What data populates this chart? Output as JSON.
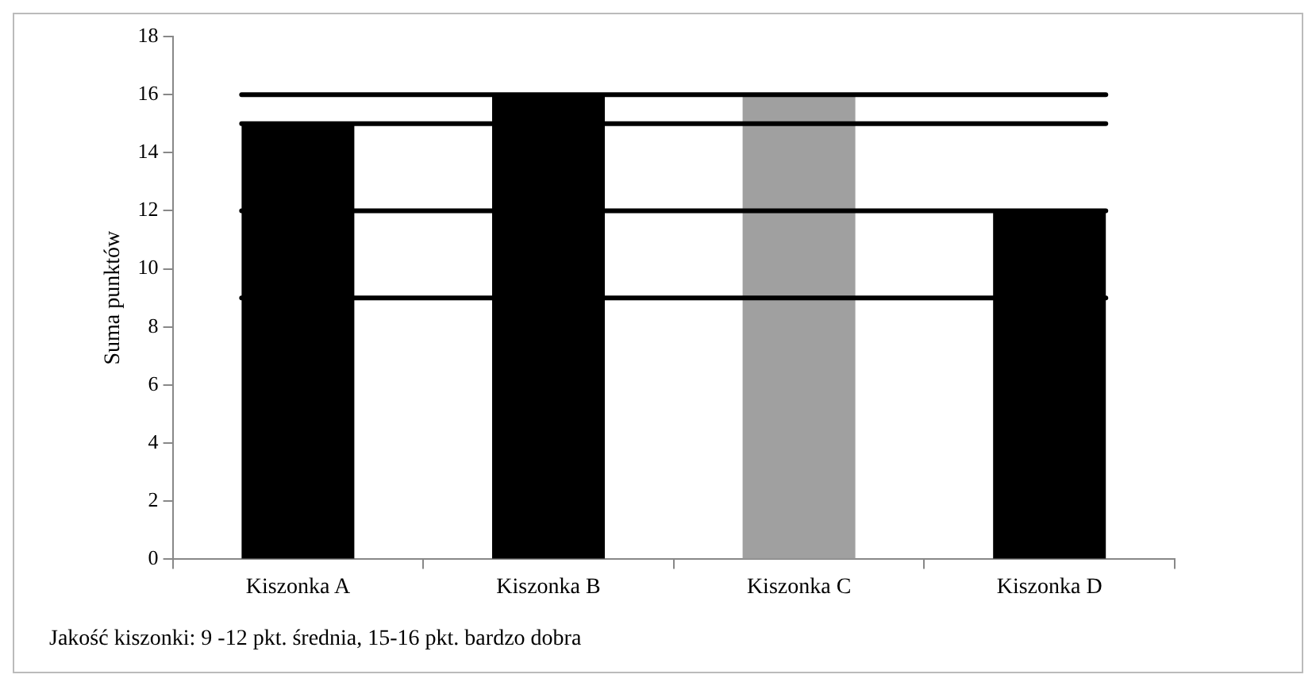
{
  "chart_data": {
    "type": "bar",
    "ylabel": "Suma punktów",
    "categories": [
      "Kiszonka A",
      "Kiszonka B",
      "Kiszonka C",
      "Kiszonka D"
    ],
    "values": [
      15,
      16,
      16,
      12
    ],
    "colors": [
      "#000000",
      "#000000",
      "#a0a0a0",
      "#000000"
    ],
    "ylim": [
      0,
      18
    ],
    "yticks": [
      0,
      2,
      4,
      6,
      8,
      10,
      12,
      14,
      16,
      18
    ],
    "grid": false,
    "legend": false,
    "ref_lines": [
      {
        "axis": "y",
        "value": 16,
        "color": "#000000"
      },
      {
        "axis": "y",
        "value": 15,
        "color": "#000000"
      },
      {
        "axis": "y",
        "value": 12,
        "color": "#000000"
      },
      {
        "axis": "y",
        "value": 9,
        "color": "#000000"
      }
    ],
    "annotations": [
      "Jakość kiszonki: 9 -12 pkt. średnia, 15-16 pkt. bardzo dobra"
    ]
  }
}
